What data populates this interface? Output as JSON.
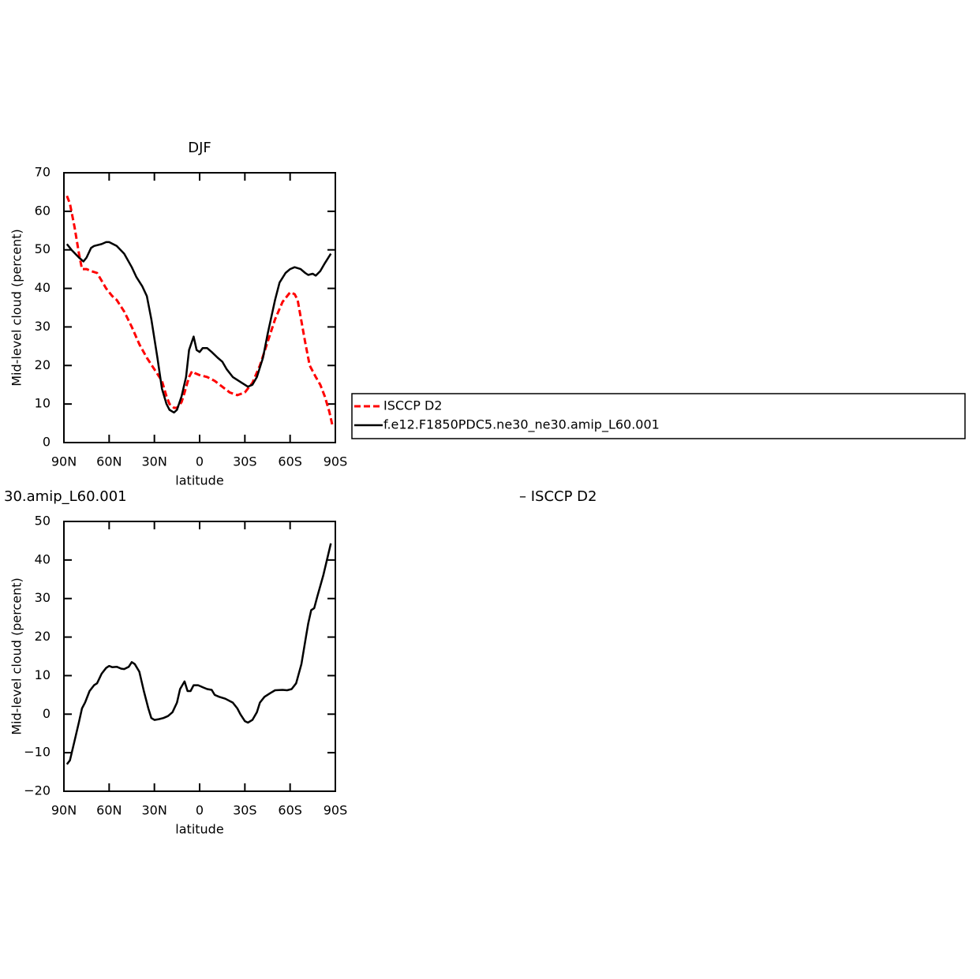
{
  "chart_data": [
    {
      "type": "line",
      "title": "DJF",
      "xlabel": "latitude",
      "ylabel": "Mid-level cloud (percent)",
      "xlim": [
        90,
        -90
      ],
      "xticks": [
        {
          "value": 90,
          "label": "90N"
        },
        {
          "value": 60,
          "label": "60N"
        },
        {
          "value": 30,
          "label": "30N"
        },
        0,
        {
          "value": -30,
          "label": "30S"
        },
        {
          "value": -60,
          "label": "60S"
        },
        {
          "value": -90,
          "label": "90S"
        }
      ],
      "ylim": [
        0,
        70
      ],
      "yticks": [
        0,
        10,
        20,
        30,
        40,
        50,
        60,
        70
      ],
      "legend": "right",
      "series": [
        {
          "name": "ISCCP D2",
          "color": "#ff0000",
          "dashed": true,
          "x": [
            88,
            86,
            83,
            80,
            78,
            75,
            72,
            68,
            65,
            62,
            58,
            55,
            50,
            45,
            40,
            35,
            30,
            25,
            22,
            20,
            17,
            15,
            12,
            10,
            7,
            5,
            3,
            0,
            -5,
            -10,
            -15,
            -20,
            -25,
            -30,
            -35,
            -40,
            -45,
            -50,
            -55,
            -60,
            -63,
            -65,
            -70,
            -73,
            -77,
            -80,
            -83,
            -86,
            -88
          ],
          "values": [
            64,
            62,
            56,
            49,
            45,
            45,
            44.5,
            44,
            42,
            40,
            38,
            37,
            34,
            30,
            25.5,
            22,
            19,
            16,
            12,
            10,
            9,
            9,
            10.5,
            13,
            17,
            18.5,
            18,
            17.5,
            17,
            16,
            14.5,
            13,
            12.3,
            13,
            15.5,
            20,
            26,
            32,
            36.5,
            39,
            38.5,
            37,
            26,
            20,
            17,
            15,
            12,
            8,
            4.5
          ]
        },
        {
          "name": "f.e12.F1850PDC5.ne30_ne30.amip_L60.001",
          "color": "#000000",
          "dashed": false,
          "x": [
            88,
            85,
            80,
            77,
            75,
            72,
            70,
            65,
            62,
            60,
            55,
            50,
            45,
            42,
            38,
            35,
            32,
            28,
            25,
            22,
            20,
            17,
            15,
            12,
            9,
            7,
            4,
            2,
            0,
            -2,
            -5,
            -8,
            -12,
            -15,
            -18,
            -22,
            -28,
            -32,
            -35,
            -38,
            -42,
            -45,
            -50,
            -53,
            -57,
            -60,
            -63,
            -67,
            -70,
            -72,
            -75,
            -77,
            -80,
            -83,
            -87
          ],
          "values": [
            51.5,
            50,
            48,
            47,
            48,
            50.5,
            51,
            51.5,
            52,
            52,
            51,
            49,
            45.5,
            43,
            40.5,
            38,
            32,
            22,
            14,
            10,
            8.5,
            7.8,
            8.5,
            12,
            17,
            24,
            27.5,
            24,
            23.5,
            24.5,
            24.5,
            23.5,
            22,
            21,
            19,
            17,
            15.5,
            14.5,
            15,
            17,
            22,
            28,
            37,
            41.5,
            44,
            45,
            45.5,
            45,
            44,
            43.5,
            43.8,
            43.3,
            44.5,
            46.5,
            49
          ]
        }
      ]
    },
    {
      "type": "line",
      "title_parts": [
        "30.amip_L60.001",
        "– ISCCP D2"
      ],
      "xlabel": "latitude",
      "ylabel": "Mid-level cloud (percent)",
      "xlim": [
        90,
        -90
      ],
      "xticks": [
        {
          "value": 90,
          "label": "90N"
        },
        {
          "value": 60,
          "label": "60N"
        },
        {
          "value": 30,
          "label": "30N"
        },
        0,
        {
          "value": -30,
          "label": "30S"
        },
        {
          "value": -60,
          "label": "60S"
        },
        {
          "value": -90,
          "label": "90S"
        }
      ],
      "ylim": [
        -20,
        50
      ],
      "yticks": [
        {
          "value": -20,
          "label": "−20"
        },
        {
          "value": -10,
          "label": "−10"
        },
        0,
        10,
        20,
        30,
        40,
        50
      ],
      "color": "#000000",
      "x": [
        88,
        86,
        83,
        80,
        78,
        76,
        73,
        70,
        68,
        65,
        62,
        60,
        58,
        55,
        52,
        50,
        47,
        45,
        43,
        40,
        37,
        34,
        32,
        30,
        27,
        24,
        21,
        18,
        15,
        13,
        10,
        8,
        6,
        4,
        1,
        -2,
        -5,
        -8,
        -10,
        -13,
        -17,
        -22,
        -25,
        -27,
        -30,
        -32,
        -35,
        -38,
        -40,
        -43,
        -47,
        -50,
        -55,
        -58,
        -61,
        -64,
        -67.5,
        -70.5,
        -72,
        -74,
        -76,
        -78,
        -82,
        -87
      ],
      "values": [
        -13,
        -12,
        -7,
        -2,
        1.5,
        3,
        6,
        7.5,
        8,
        10.5,
        12,
        12.5,
        12.2,
        12.3,
        11.8,
        11.7,
        12.3,
        13.5,
        13,
        11,
        6,
        1.5,
        -1,
        -1.5,
        -1.3,
        -1,
        -0.5,
        0.5,
        3,
        6.5,
        8.5,
        6,
        6,
        7.5,
        7.5,
        7,
        6.5,
        6.3,
        5,
        4.5,
        4,
        3,
        1.5,
        0,
        -1.8,
        -2.2,
        -1.5,
        0.5,
        3,
        4.5,
        5.5,
        6.2,
        6.3,
        6.2,
        6.5,
        8,
        13,
        20,
        23.5,
        27,
        27.5,
        30.5,
        36,
        44.3
      ]
    }
  ]
}
